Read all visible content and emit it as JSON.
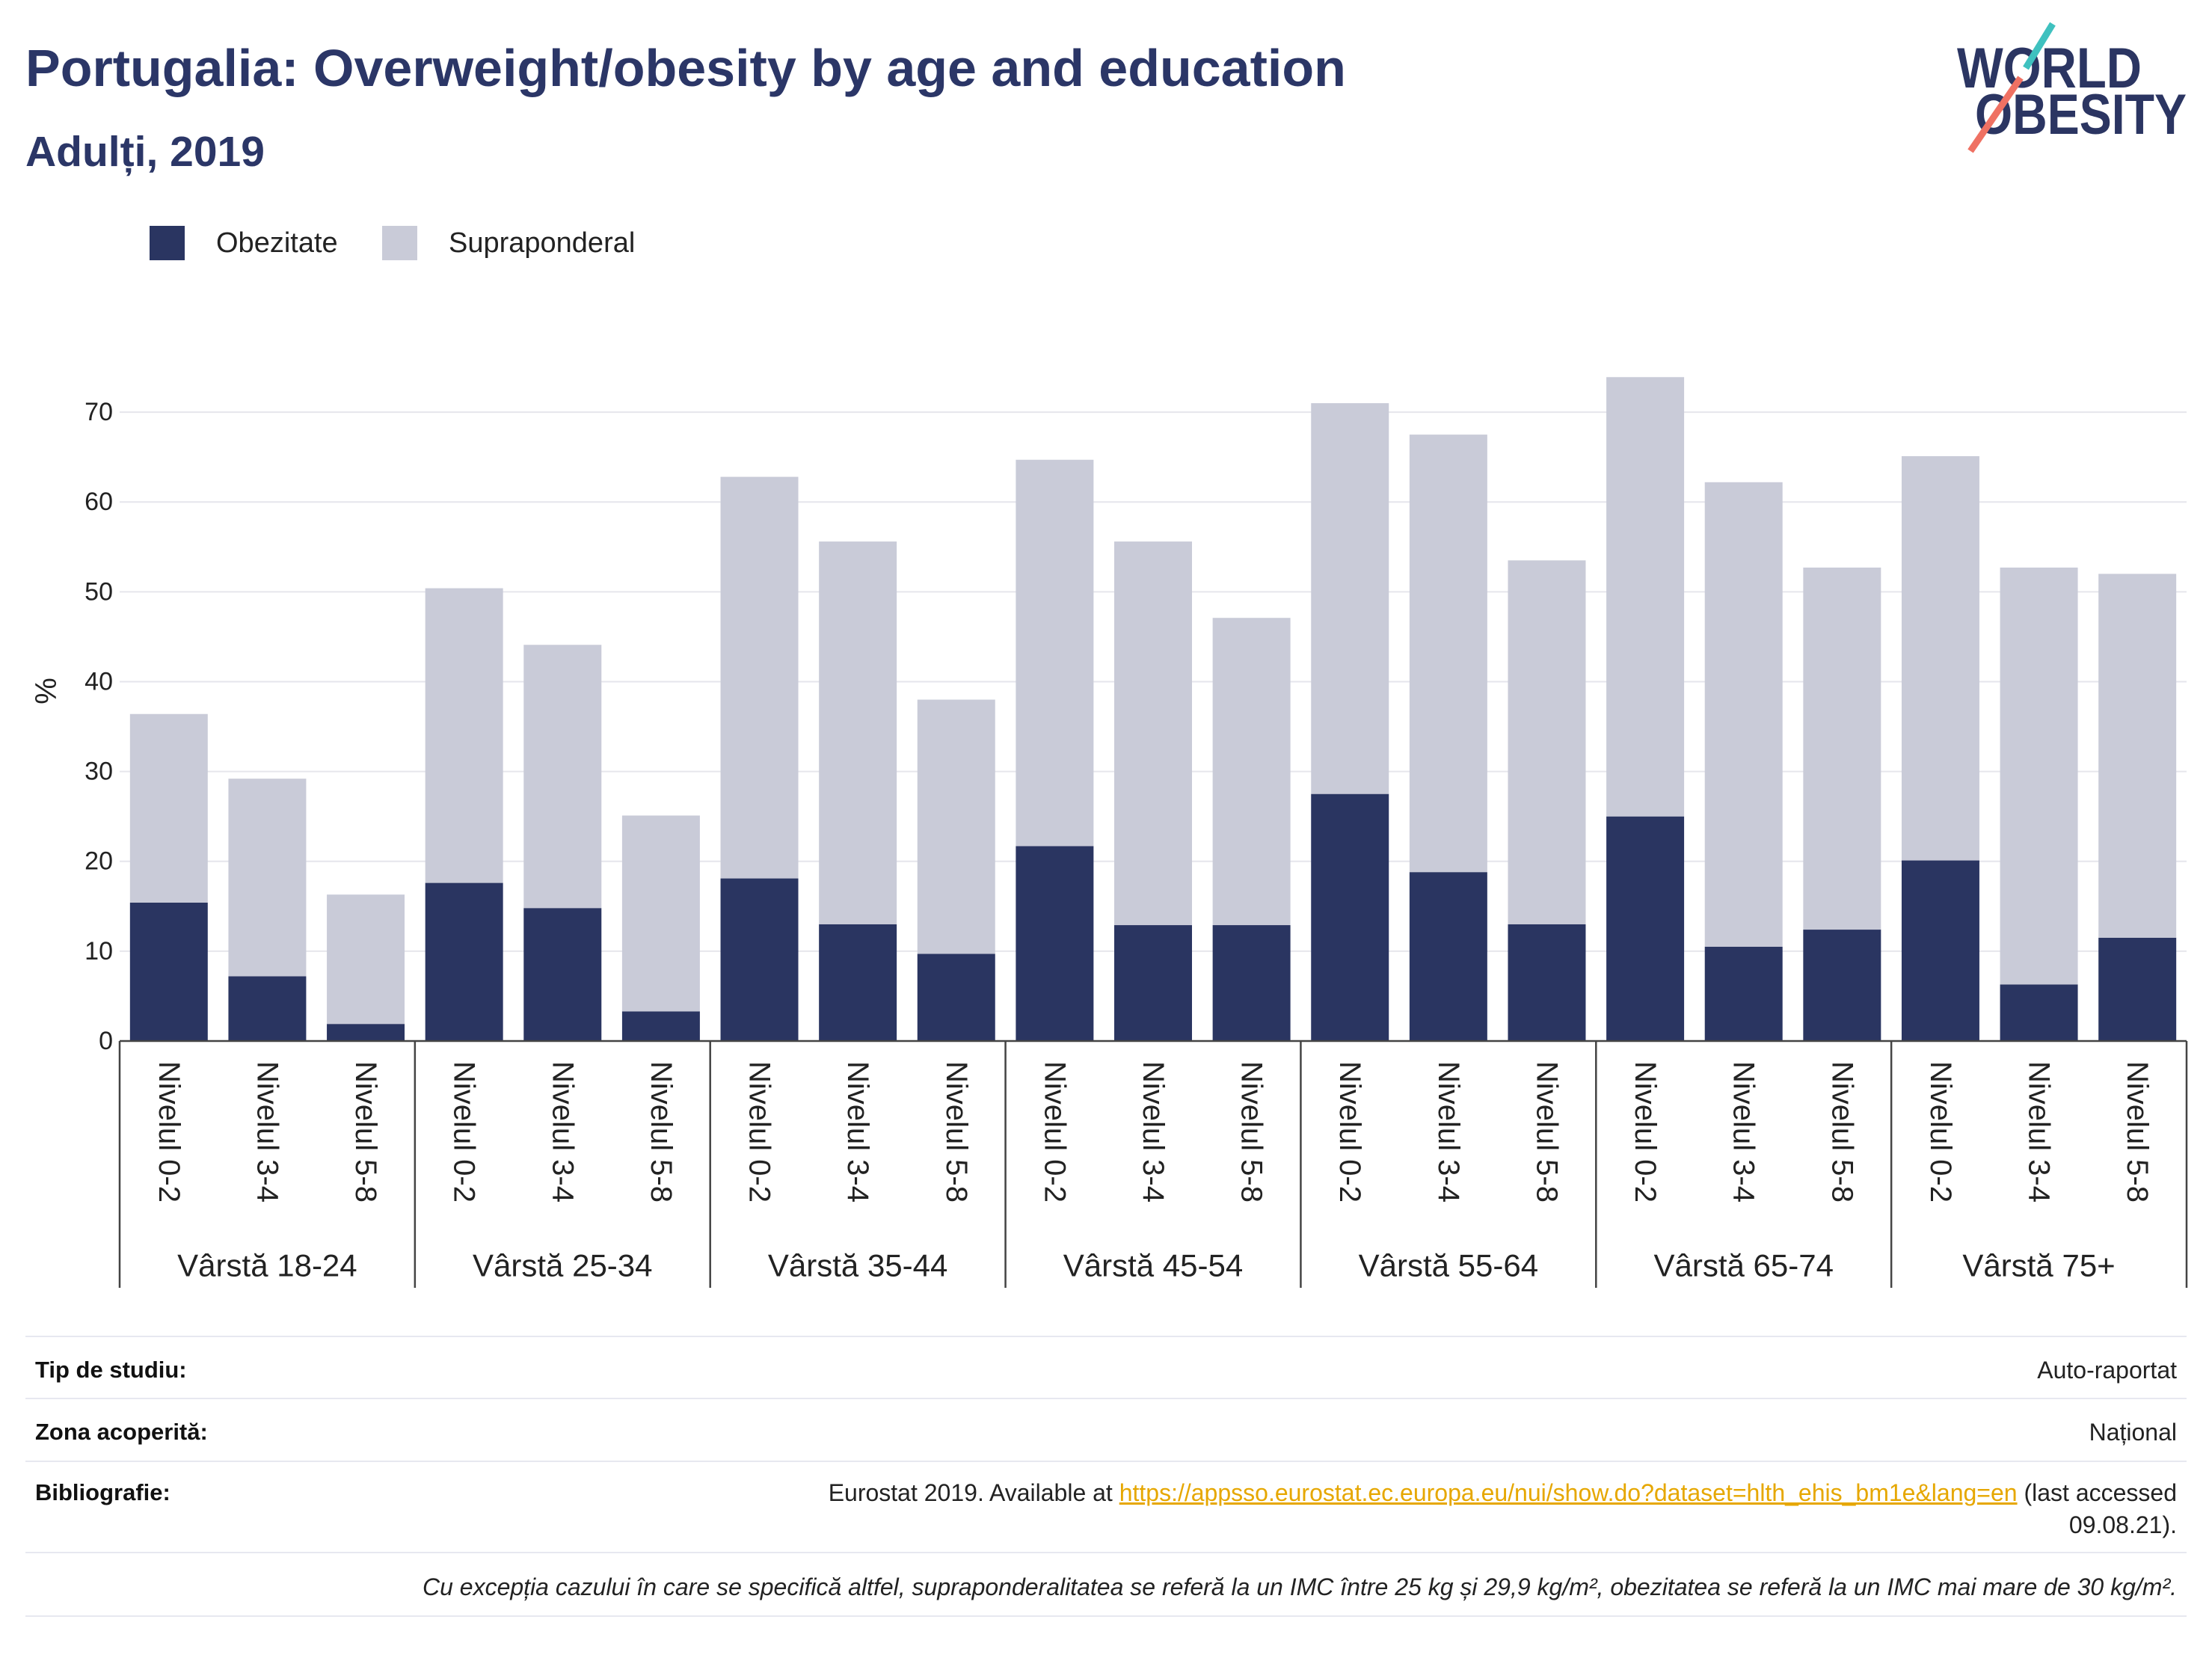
{
  "chart_data": {
    "type": "bar",
    "stacked": true,
    "title": "Portugalia: Overweight/obesity by age and education",
    "subtitle": "Adulți, 2019",
    "xlabel": "",
    "ylabel": "%",
    "ylim": [
      0,
      78
    ],
    "yticks": [
      0,
      10,
      20,
      30,
      40,
      50,
      60,
      70
    ],
    "grid": true,
    "legend_position": "top-left",
    "groups": [
      {
        "label": "Vârstă 18-24",
        "categories": [
          "Nivelul 0-2",
          "Nivelul 3-4",
          "Nivelul 5-8"
        ]
      },
      {
        "label": "Vârstă 25-34",
        "categories": [
          "Nivelul 0-2",
          "Nivelul 3-4",
          "Nivelul 5-8"
        ]
      },
      {
        "label": "Vârstă 35-44",
        "categories": [
          "Nivelul 0-2",
          "Nivelul 3-4",
          "Nivelul 5-8"
        ]
      },
      {
        "label": "Vârstă 45-54",
        "categories": [
          "Nivelul 0-2",
          "Nivelul 3-4",
          "Nivelul 5-8"
        ]
      },
      {
        "label": "Vârstă 55-64",
        "categories": [
          "Nivelul 0-2",
          "Nivelul 3-4",
          "Nivelul 5-8"
        ]
      },
      {
        "label": "Vârstă 65-74",
        "categories": [
          "Nivelul 0-2",
          "Nivelul 3-4",
          "Nivelul 5-8"
        ]
      },
      {
        "label": "Vârstă 75+",
        "categories": [
          "Nivelul 0-2",
          "Nivelul 3-4",
          "Nivelul 5-8"
        ]
      }
    ],
    "series": [
      {
        "name": "Obezitate",
        "color": "#2a3561",
        "values": [
          15.4,
          7.2,
          1.9,
          17.6,
          14.8,
          3.3,
          18.1,
          13.0,
          9.7,
          21.7,
          12.9,
          12.9,
          27.5,
          18.8,
          13.0,
          25.0,
          10.5,
          12.4,
          20.1,
          6.3,
          11.5
        ]
      },
      {
        "name": "Supraponderal",
        "color": "#c9cbd8",
        "values": [
          21.0,
          22.0,
          14.4,
          32.8,
          29.3,
          21.8,
          44.7,
          42.6,
          28.3,
          43.0,
          42.7,
          34.2,
          43.5,
          48.7,
          40.5,
          48.9,
          51.7,
          40.3,
          45.0,
          46.4,
          40.5
        ]
      }
    ]
  },
  "logo": {
    "line1": "WORLD",
    "line2": "OBESITY"
  },
  "info": {
    "rows": [
      {
        "label": "Tip de studiu:",
        "value": "Auto-raportat"
      },
      {
        "label": "Zona acoperită:",
        "value": "Național"
      }
    ],
    "bibliography": {
      "label": "Bibliografie:",
      "prefix": "Eurostat 2019. Available at",
      "url": "https://appsso.eurostat.ec.europa.eu/nui/show.do?dataset=hlth_ehis_bm1e&lang=en",
      "suffix_line1": "(last accessed",
      "suffix_line2": "09.08.21)."
    },
    "note": "Cu excepția cazului în care se specifică altfel, supraponderalitatea se referă la un IMC între 25 kg și 29,9 kg/m², obezitatea se referă la un IMC mai mare de 30 kg/m²."
  },
  "colors": {
    "title": "#2b3667",
    "link": "#e6a700",
    "logo_navy": "#2b3562",
    "logo_teal": "#3fc1bf",
    "logo_coral": "#ef7163"
  }
}
